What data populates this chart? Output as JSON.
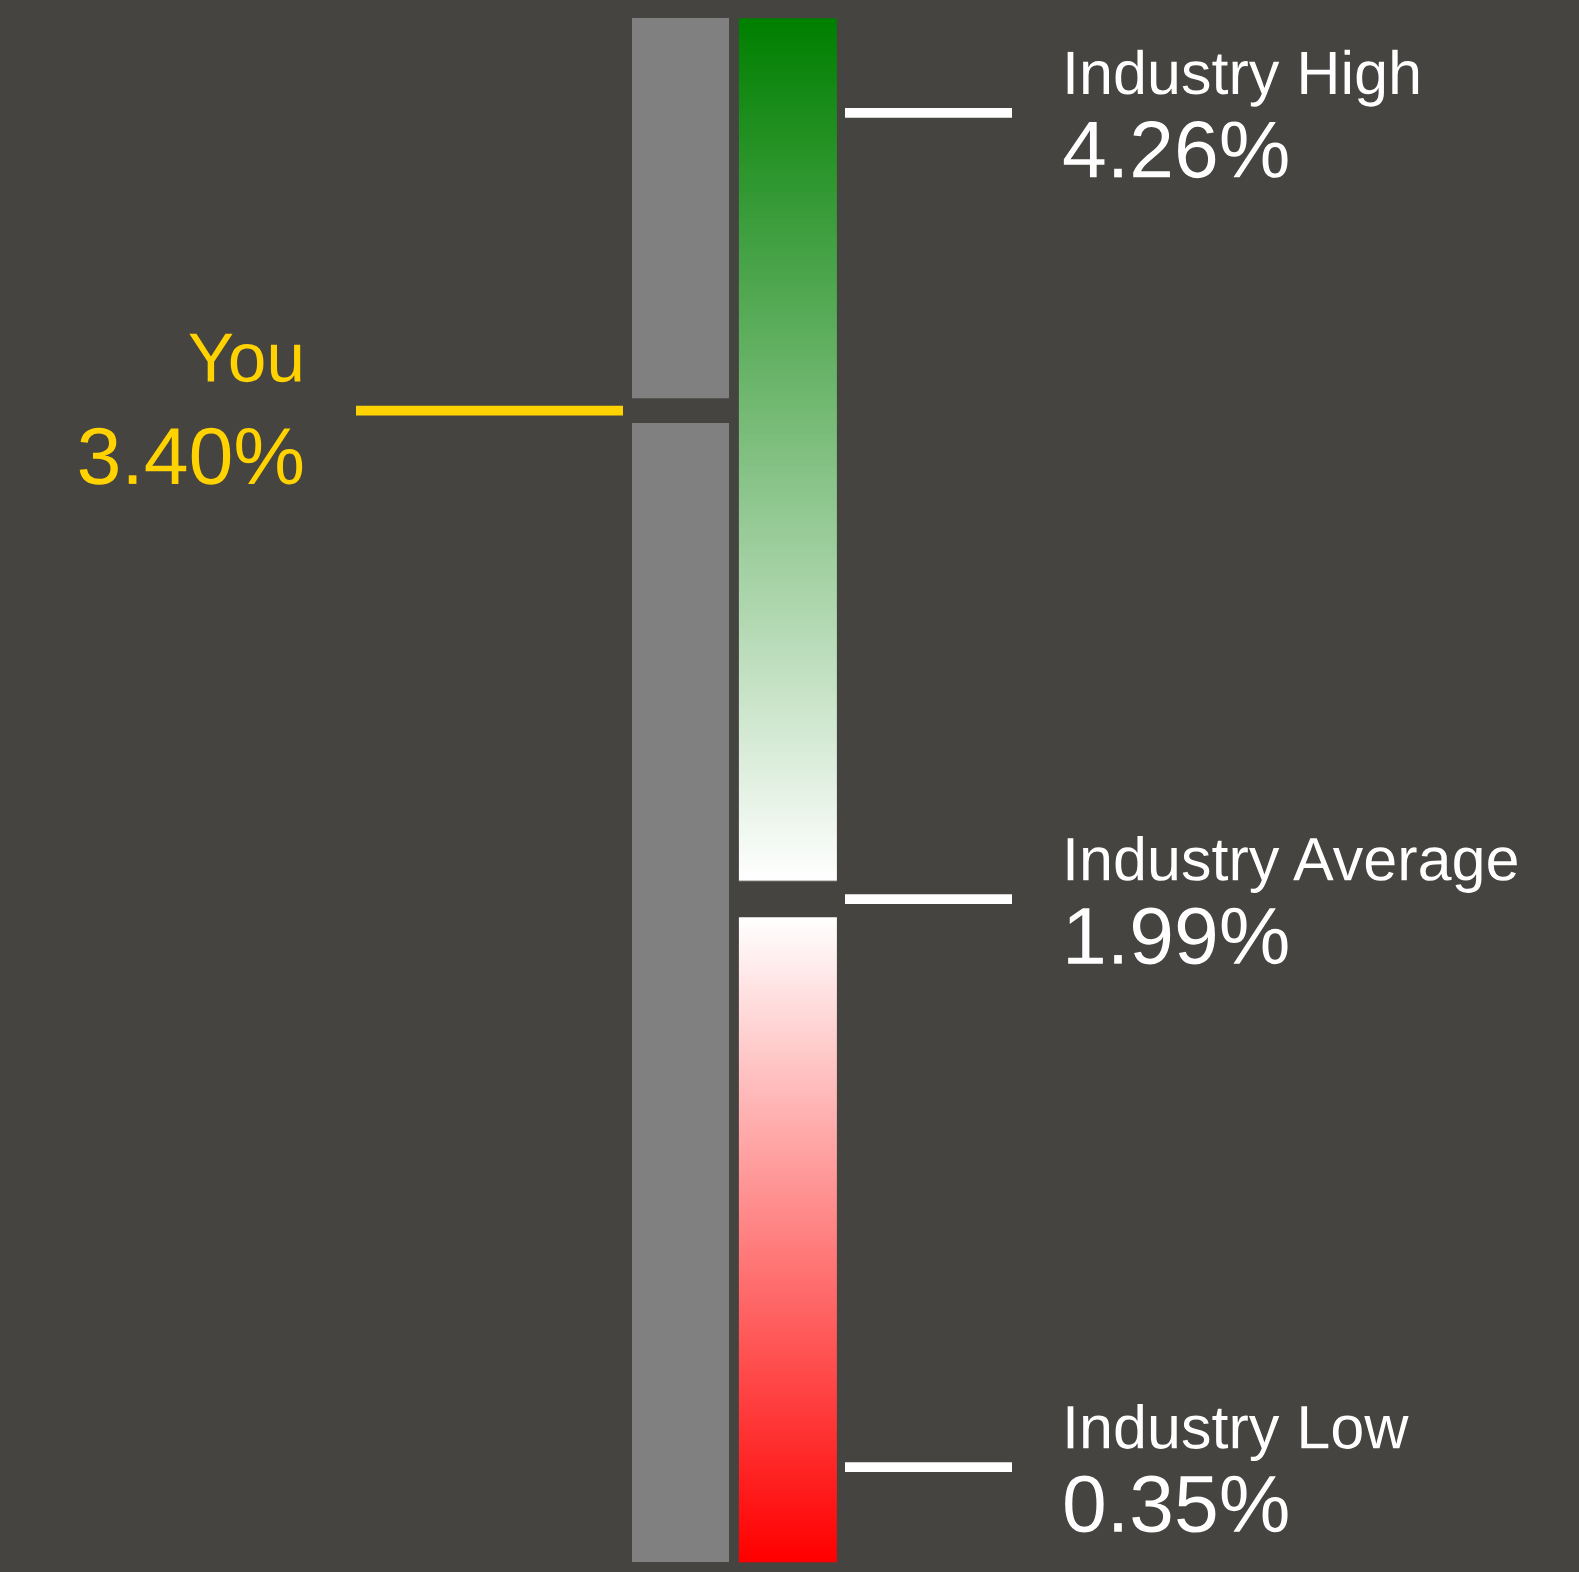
{
  "chart_data": {
    "type": "other",
    "categories": [
      "You",
      "Industry High",
      "Industry Average",
      "Industry Low"
    ],
    "values": [
      3.4,
      4.26,
      1.99,
      0.35
    ],
    "value_labels": [
      "3.40%",
      "4.26%",
      "1.99%",
      "0.35%"
    ],
    "colors": [
      "#ffd200",
      "#ffffff",
      "#ffffff",
      "#ffffff"
    ]
  }
}
